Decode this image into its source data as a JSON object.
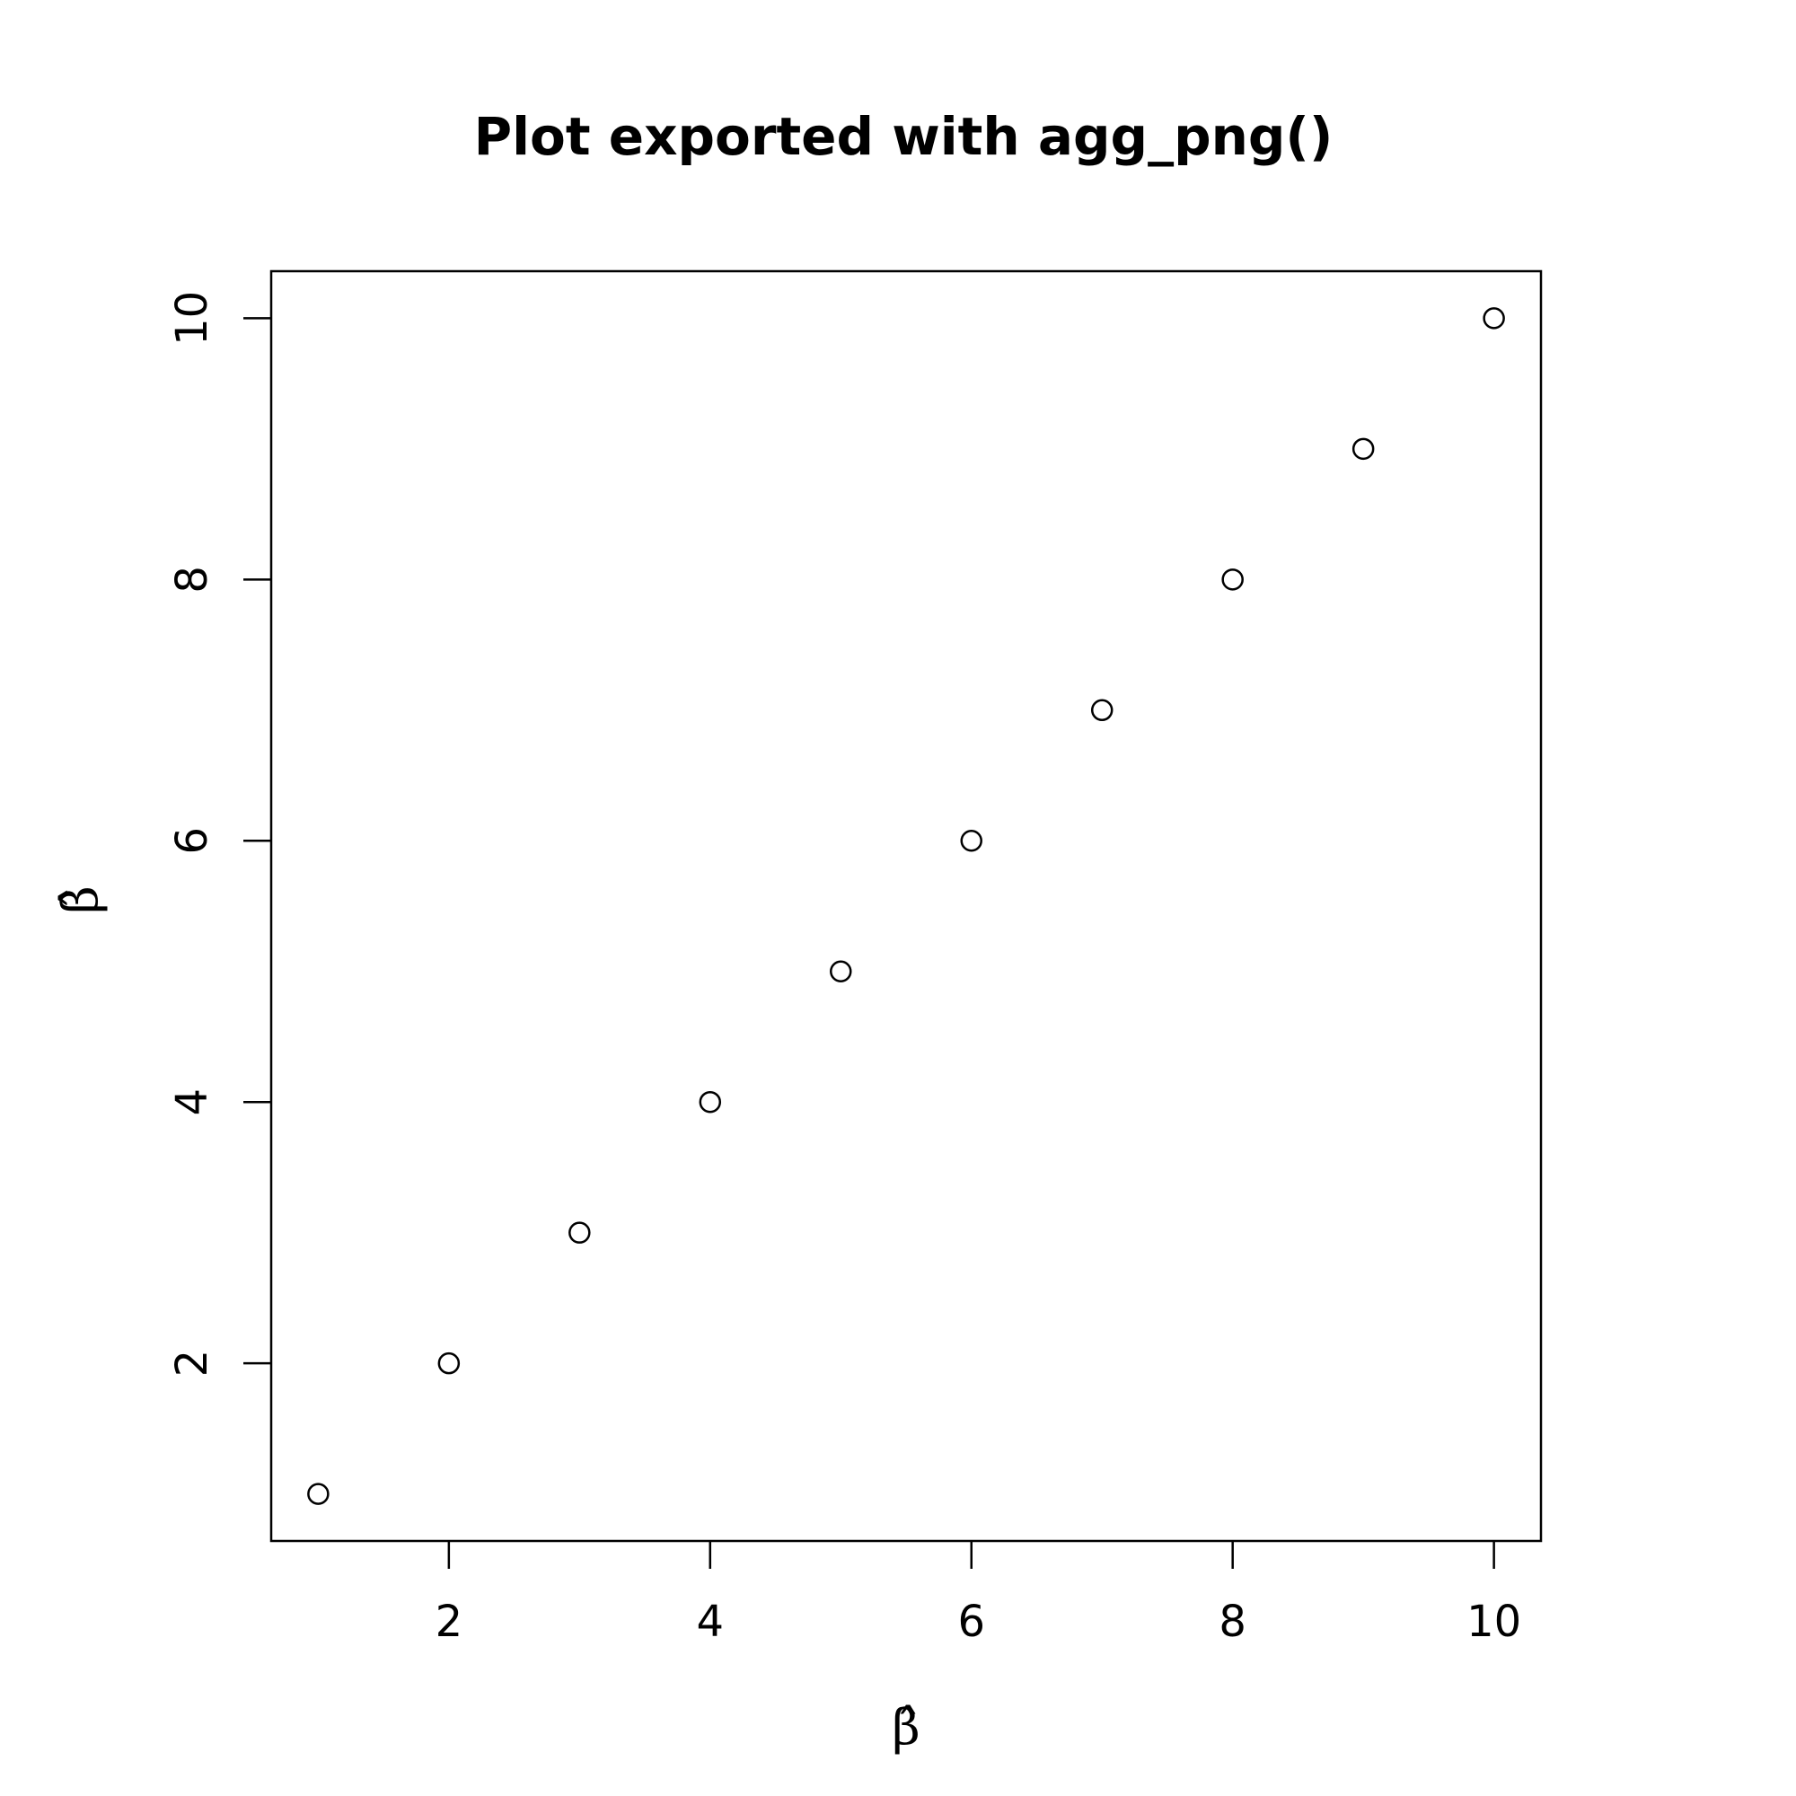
{
  "chart_data": {
    "type": "scatter",
    "title": "Plot exported with agg_png()",
    "xlabel": "β̂",
    "ylabel": "β̂",
    "x": [
      1,
      2,
      3,
      4,
      5,
      6,
      7,
      8,
      9,
      10
    ],
    "y": [
      1,
      2,
      3,
      4,
      5,
      6,
      7,
      8,
      9,
      10
    ],
    "xlim": [
      0.64,
      10.36
    ],
    "ylim": [
      0.64,
      10.36
    ],
    "x_ticks": [
      2,
      4,
      6,
      8,
      10
    ],
    "y_ticks": [
      2,
      4,
      6,
      8,
      10
    ],
    "x_tick_labels": [
      "2",
      "4",
      "6",
      "8",
      "10"
    ],
    "y_tick_labels": [
      "2",
      "4",
      "6",
      "8",
      "10"
    ],
    "marker": "open-circle",
    "grid": false,
    "legend": "none",
    "colors": {
      "points": "#000000",
      "axes": "#000000",
      "background": "#ffffff"
    }
  }
}
